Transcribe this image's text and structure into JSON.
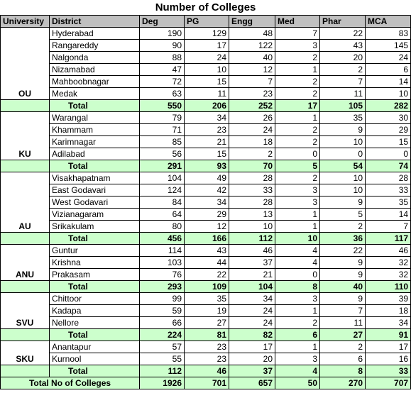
{
  "title": "Number of Colleges",
  "table": {
    "headers": [
      "University",
      "District",
      "Deg",
      "PG",
      "Engg",
      "Med",
      "Phar",
      "MCA"
    ],
    "groups": [
      {
        "university": "OU",
        "rows": [
          {
            "district": "Hyderabad",
            "values": [
              190,
              129,
              48,
              7,
              22,
              83
            ]
          },
          {
            "district": "Rangareddy",
            "values": [
              90,
              17,
              122,
              3,
              43,
              145
            ]
          },
          {
            "district": "Nalgonda",
            "values": [
              88,
              24,
              40,
              2,
              20,
              24
            ]
          },
          {
            "district": "Nizamabad",
            "values": [
              47,
              10,
              12,
              1,
              2,
              6
            ]
          },
          {
            "district": "Mahboobnagar",
            "values": [
              72,
              15,
              7,
              2,
              7,
              14
            ]
          },
          {
            "district": "Medak",
            "values": [
              63,
              11,
              23,
              2,
              11,
              10
            ]
          }
        ],
        "total_label": "Total",
        "total": [
          550,
          206,
          252,
          17,
          105,
          282
        ]
      },
      {
        "university": "KU",
        "rows": [
          {
            "district": "Warangal",
            "values": [
              79,
              34,
              26,
              1,
              35,
              30
            ]
          },
          {
            "district": "Khammam",
            "values": [
              71,
              23,
              24,
              2,
              9,
              29
            ]
          },
          {
            "district": "Karimnagar",
            "values": [
              85,
              21,
              18,
              2,
              10,
              15
            ]
          },
          {
            "district": "Adilabad",
            "values": [
              56,
              15,
              2,
              0,
              0,
              0
            ]
          }
        ],
        "total_label": "Total",
        "total": [
          291,
          93,
          70,
          5,
          54,
          74
        ]
      },
      {
        "university": "AU",
        "rows": [
          {
            "district": "Visakhapatnam",
            "values": [
              104,
              49,
              28,
              2,
              10,
              28
            ]
          },
          {
            "district": "East Godavari",
            "values": [
              124,
              42,
              33,
              3,
              10,
              33
            ]
          },
          {
            "district": "West Godavari",
            "values": [
              84,
              34,
              28,
              3,
              9,
              35
            ]
          },
          {
            "district": "Vizianagaram",
            "values": [
              64,
              29,
              13,
              1,
              5,
              14
            ]
          },
          {
            "district": "Srikakulam",
            "values": [
              80,
              12,
              10,
              1,
              2,
              7
            ]
          }
        ],
        "total_label": "Total",
        "total": [
          456,
          166,
          112,
          10,
          36,
          117
        ]
      },
      {
        "university": "ANU",
        "rows": [
          {
            "district": "Guntur",
            "values": [
              114,
              43,
              46,
              4,
              22,
              46
            ]
          },
          {
            "district": "Krishna",
            "values": [
              103,
              44,
              37,
              4,
              9,
              32
            ]
          },
          {
            "district": "Prakasam",
            "values": [
              76,
              22,
              21,
              0,
              9,
              32
            ]
          }
        ],
        "total_label": "Total",
        "total": [
          293,
          109,
          104,
          8,
          40,
          110
        ]
      },
      {
        "university": "SVU",
        "rows": [
          {
            "district": "Chittoor",
            "values": [
              99,
              35,
              34,
              3,
              9,
              39
            ]
          },
          {
            "district": "Kadapa",
            "values": [
              59,
              19,
              24,
              1,
              7,
              18
            ]
          },
          {
            "district": "Nellore",
            "values": [
              66,
              27,
              24,
              2,
              11,
              34
            ]
          }
        ],
        "total_label": "Total",
        "total": [
          224,
          81,
          82,
          6,
          27,
          91
        ]
      },
      {
        "university": "SKU",
        "rows": [
          {
            "district": "Anantapur",
            "values": [
              57,
              23,
              17,
              1,
              2,
              17
            ]
          },
          {
            "district": "Kurnool",
            "values": [
              55,
              23,
              20,
              3,
              6,
              16
            ]
          }
        ],
        "total_label": "Total",
        "total": [
          112,
          46,
          37,
          4,
          8,
          33
        ]
      }
    ],
    "grand_total": {
      "label": "Total No of Colleges",
      "values": [
        1926,
        701,
        657,
        50,
        270,
        707
      ]
    }
  }
}
